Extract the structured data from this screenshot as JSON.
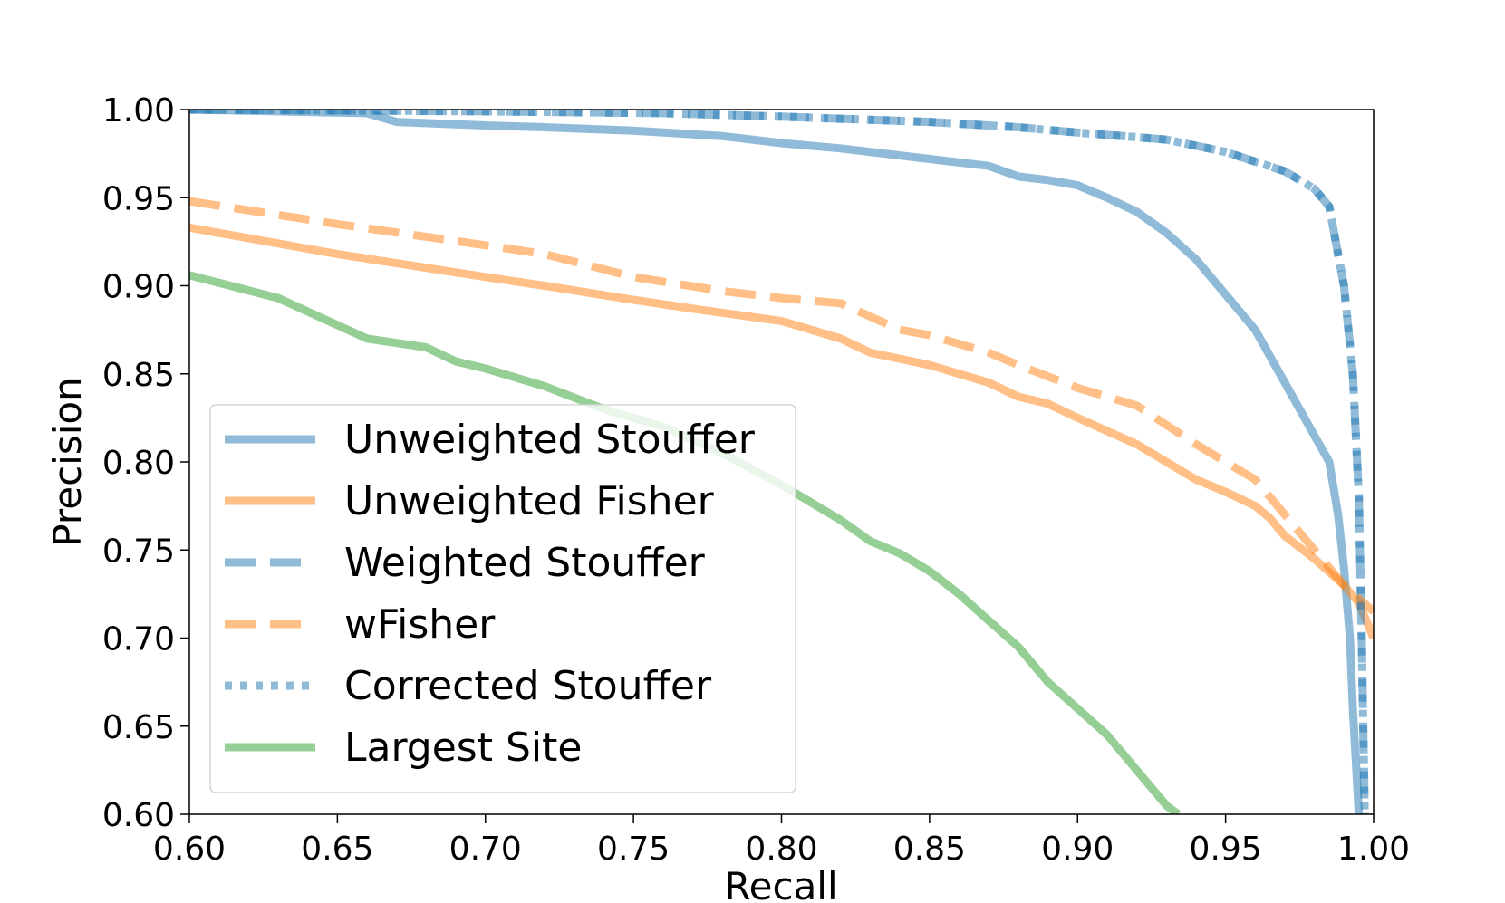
{
  "chart_data": {
    "type": "line",
    "title": "",
    "xlabel": "Recall",
    "ylabel": "Precision",
    "xlim": [
      0.6,
      1.0
    ],
    "ylim": [
      0.6,
      1.0
    ],
    "xticks": [
      "0.60",
      "0.65",
      "0.70",
      "0.75",
      "0.80",
      "0.85",
      "0.90",
      "0.95",
      "1.00"
    ],
    "yticks": [
      "0.60",
      "0.65",
      "0.70",
      "0.75",
      "0.80",
      "0.85",
      "0.90",
      "0.95",
      "1.00"
    ],
    "grid": false,
    "legend_position": "lower-left",
    "series": [
      {
        "name": "Unweighted Stouffer",
        "color": "#1f77b4",
        "style": "solid",
        "x": [
          0.6,
          0.66,
          0.67,
          0.7,
          0.72,
          0.75,
          0.78,
          0.8,
          0.82,
          0.84,
          0.85,
          0.87,
          0.88,
          0.89,
          0.9,
          0.91,
          0.92,
          0.93,
          0.94,
          0.95,
          0.96,
          0.97,
          0.975,
          0.98,
          0.985,
          0.988,
          0.99,
          0.992,
          0.993,
          0.994,
          0.995
        ],
        "y": [
          1.0,
          0.998,
          0.993,
          0.991,
          0.99,
          0.988,
          0.985,
          0.981,
          0.978,
          0.974,
          0.972,
          0.968,
          0.962,
          0.96,
          0.957,
          0.95,
          0.942,
          0.93,
          0.915,
          0.895,
          0.875,
          0.845,
          0.83,
          0.815,
          0.8,
          0.77,
          0.74,
          0.7,
          0.66,
          0.63,
          0.6
        ]
      },
      {
        "name": "Unweighted Fisher",
        "color": "#ff7f0e",
        "style": "solid",
        "x": [
          0.6,
          0.65,
          0.7,
          0.72,
          0.75,
          0.77,
          0.8,
          0.82,
          0.83,
          0.85,
          0.86,
          0.87,
          0.88,
          0.89,
          0.9,
          0.92,
          0.93,
          0.94,
          0.95,
          0.96,
          0.965,
          0.97,
          0.98,
          0.99,
          0.995,
          1.0
        ],
        "y": [
          0.933,
          0.918,
          0.905,
          0.9,
          0.892,
          0.887,
          0.88,
          0.87,
          0.862,
          0.855,
          0.85,
          0.845,
          0.837,
          0.833,
          0.825,
          0.81,
          0.8,
          0.79,
          0.783,
          0.775,
          0.768,
          0.758,
          0.745,
          0.73,
          0.72,
          0.7
        ]
      },
      {
        "name": "Weighted Stouffer",
        "color": "#1f77b4",
        "style": "dashed",
        "x": [
          0.6,
          0.7,
          0.76,
          0.8,
          0.85,
          0.88,
          0.9,
          0.93,
          0.95,
          0.97,
          0.98,
          0.985,
          0.99,
          0.993,
          0.995,
          0.996,
          0.997
        ],
        "y": [
          1.0,
          0.999,
          0.998,
          0.996,
          0.993,
          0.99,
          0.987,
          0.983,
          0.976,
          0.965,
          0.955,
          0.945,
          0.9,
          0.85,
          0.78,
          0.7,
          0.6
        ]
      },
      {
        "name": "wFisher",
        "color": "#ff7f0e",
        "style": "dashed",
        "x": [
          0.6,
          0.65,
          0.7,
          0.72,
          0.75,
          0.78,
          0.8,
          0.82,
          0.84,
          0.85,
          0.87,
          0.88,
          0.9,
          0.92,
          0.94,
          0.95,
          0.96,
          0.97,
          0.98,
          0.99,
          1.0
        ],
        "y": [
          0.948,
          0.935,
          0.923,
          0.918,
          0.905,
          0.897,
          0.893,
          0.89,
          0.875,
          0.872,
          0.862,
          0.855,
          0.842,
          0.832,
          0.81,
          0.8,
          0.79,
          0.77,
          0.75,
          0.73,
          0.715
        ]
      },
      {
        "name": "Corrected Stouffer",
        "color": "#1f77b4",
        "style": "dotted",
        "x": [
          0.6,
          0.7,
          0.76,
          0.8,
          0.85,
          0.88,
          0.9,
          0.93,
          0.95,
          0.97,
          0.98,
          0.985,
          0.99,
          0.993,
          0.995,
          0.996,
          0.997
        ],
        "y": [
          1.0,
          0.999,
          0.998,
          0.996,
          0.993,
          0.99,
          0.987,
          0.983,
          0.976,
          0.965,
          0.955,
          0.945,
          0.9,
          0.85,
          0.78,
          0.7,
          0.6
        ]
      },
      {
        "name": "Largest Site",
        "color": "#2ca02c",
        "style": "solid",
        "x": [
          0.6,
          0.63,
          0.66,
          0.68,
          0.69,
          0.7,
          0.72,
          0.74,
          0.76,
          0.78,
          0.8,
          0.82,
          0.83,
          0.84,
          0.85,
          0.86,
          0.87,
          0.88,
          0.89,
          0.9,
          0.91,
          0.92,
          0.93,
          0.934
        ],
        "y": [
          0.906,
          0.893,
          0.87,
          0.865,
          0.857,
          0.853,
          0.843,
          0.83,
          0.82,
          0.805,
          0.787,
          0.767,
          0.755,
          0.748,
          0.738,
          0.725,
          0.71,
          0.695,
          0.675,
          0.66,
          0.645,
          0.625,
          0.605,
          0.6
        ]
      }
    ]
  }
}
